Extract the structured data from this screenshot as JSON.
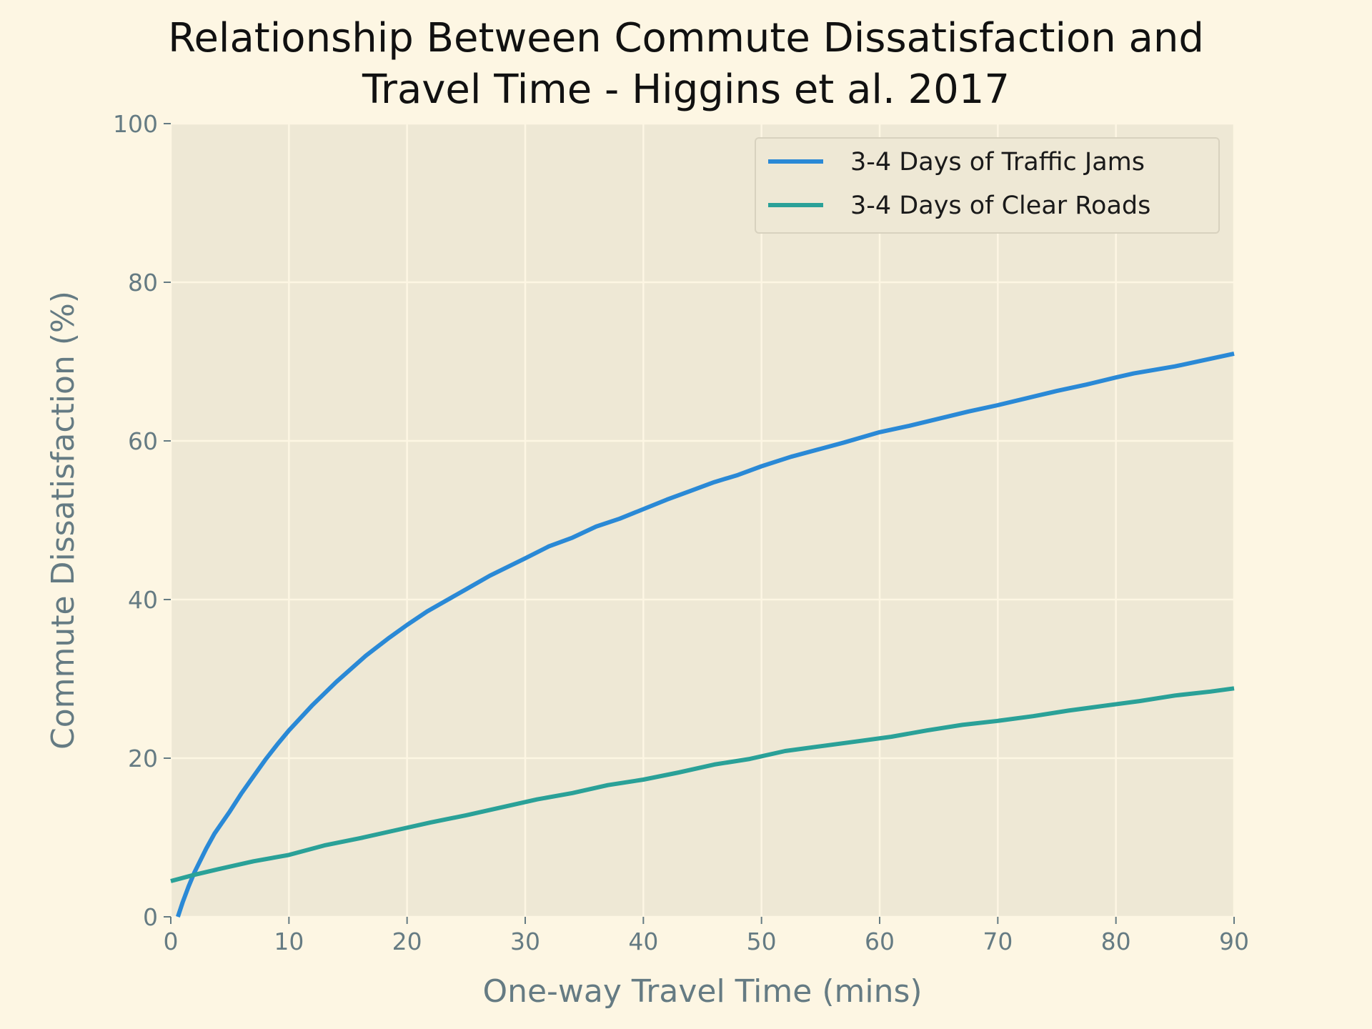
{
  "chart_data": {
    "type": "line",
    "title_lines": [
      "Relationship Between Commute Dissatisfaction and",
      "Travel Time - Higgins et al. 2017"
    ],
    "xlabel": "One-way Travel Time (mins)",
    "ylabel": "Commute Dissatisfaction (%)",
    "xlim": [
      0,
      90
    ],
    "ylim": [
      0,
      100
    ],
    "xticks": [
      "0",
      "10",
      "20",
      "30",
      "40",
      "50",
      "60",
      "70",
      "80",
      "90"
    ],
    "yticks": [
      "0",
      "20",
      "40",
      "60",
      "80",
      "100"
    ],
    "grid": true,
    "legend_position": "top-right",
    "series": [
      {
        "name": "3-4 Days of Traffic Jams",
        "color": "#2a89d6",
        "x": [
          0.6,
          1.0,
          1.5,
          2.0,
          3.0,
          3.7,
          5.0,
          6.0,
          7.0,
          8.0,
          9.0,
          10.0,
          12.0,
          14.0,
          16.5,
          18.5,
          20.0,
          21.7,
          23.0,
          25.0,
          27.0,
          30.0,
          32.0,
          34.0,
          36.0,
          38.0,
          40.0,
          42.0,
          44.0,
          46.0,
          48.0,
          50.0,
          52.5,
          55.0,
          57.0,
          60.0,
          62.5,
          65.0,
          67.5,
          70.0,
          72.5,
          75.0,
          77.5,
          80.0,
          81.5,
          85.0,
          87.5,
          90.0
        ],
        "y": [
          0.0,
          1.8,
          3.8,
          5.6,
          8.6,
          10.5,
          13.3,
          15.6,
          17.7,
          19.8,
          21.7,
          23.5,
          26.7,
          29.6,
          32.9,
          35.2,
          36.8,
          38.5,
          39.6,
          41.3,
          43.0,
          45.2,
          46.7,
          47.8,
          49.2,
          50.2,
          51.4,
          52.6,
          53.7,
          54.8,
          55.7,
          56.8,
          58.0,
          59.0,
          59.8,
          61.1,
          61.9,
          62.8,
          63.7,
          64.5,
          65.4,
          66.3,
          67.1,
          68.0,
          68.5,
          69.4,
          70.2,
          71.0
        ]
      },
      {
        "name": "3-4 Days of Clear Roads",
        "color": "#2aa198",
        "x": [
          0,
          2,
          4,
          7,
          10,
          13,
          16,
          19,
          22,
          25,
          28,
          31,
          34,
          37,
          40,
          43,
          46,
          49,
          52,
          55,
          58,
          61,
          64,
          67,
          70,
          73,
          76,
          79,
          82,
          85,
          88,
          90
        ],
        "y": [
          4.5,
          5.3,
          6.0,
          7.0,
          7.8,
          9.0,
          9.9,
          10.9,
          11.9,
          12.8,
          13.8,
          14.8,
          15.6,
          16.6,
          17.3,
          18.2,
          19.2,
          19.9,
          20.9,
          21.5,
          22.1,
          22.7,
          23.5,
          24.2,
          24.7,
          25.3,
          26.0,
          26.6,
          27.2,
          27.9,
          28.4,
          28.8
        ]
      }
    ]
  }
}
